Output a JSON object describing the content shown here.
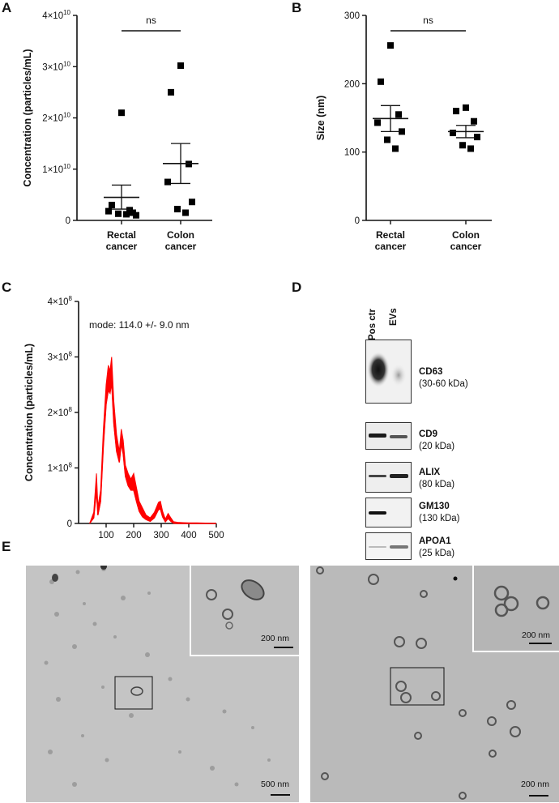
{
  "panels": {
    "A": "A",
    "B": "B",
    "C": "C",
    "D": "D",
    "E": "E"
  },
  "chart_data": [
    {
      "panel": "A",
      "type": "scatter",
      "ylabel": "Concentration (particles/mL)",
      "categories": [
        "Rectal\ncancer",
        "Colon\ncancer"
      ],
      "category_lines": [
        [
          "Rectal",
          "cancer"
        ],
        [
          "Colon",
          "cancer"
        ]
      ],
      "ylim": [
        0,
        40000000000
      ],
      "yticks": [
        {
          "value": 0,
          "label": "0"
        },
        {
          "value": 10000000000,
          "label": "1×10",
          "exp": "10"
        },
        {
          "value": 20000000000,
          "label": "2×10",
          "exp": "10"
        },
        {
          "value": 30000000000,
          "label": "3×10",
          "exp": "10"
        },
        {
          "value": 40000000000,
          "label": "4×10",
          "exp": "10"
        }
      ],
      "significance": "ns",
      "series": [
        {
          "category": "Rectal cancer",
          "points": [
            21000000000,
            3000000000,
            2000000000,
            1800000000,
            1500000000,
            1300000000,
            1200000000,
            1000000000
          ],
          "mean": 4500000000,
          "sem_upper": 6900000000,
          "sem_lower": 2200000000
        },
        {
          "category": "Colon cancer",
          "points": [
            30200000000,
            25000000000,
            11000000000,
            7500000000,
            3600000000,
            2200000000,
            1500000000
          ],
          "mean": 11100000000,
          "sem_upper": 15000000000,
          "sem_lower": 7200000000
        }
      ],
      "marker_color": "#000000"
    },
    {
      "panel": "B",
      "type": "scatter",
      "ylabel": "Size (nm)",
      "categories": [
        "Rectal\ncancer",
        "Colon\ncancer"
      ],
      "category_lines": [
        [
          "Rectal",
          "cancer"
        ],
        [
          "Colon",
          "cancer"
        ]
      ],
      "ylim": [
        0,
        300
      ],
      "yticks": [
        {
          "value": 0,
          "label": "0"
        },
        {
          "value": 100,
          "label": "100"
        },
        {
          "value": 200,
          "label": "200"
        },
        {
          "value": 300,
          "label": "300"
        }
      ],
      "significance": "ns",
      "series": [
        {
          "category": "Rectal cancer",
          "points": [
            256,
            203,
            155,
            143,
            130,
            118,
            105
          ],
          "mean": 149,
          "sem_upper": 168,
          "sem_lower": 130
        },
        {
          "category": "Colon cancer",
          "points": [
            165,
            160,
            145,
            128,
            122,
            110,
            105
          ],
          "mean": 130,
          "sem_upper": 139,
          "sem_lower": 121
        }
      ],
      "marker_color": "#000000"
    },
    {
      "panel": "C",
      "type": "area",
      "ylabel": "Concentration (particles/mL)",
      "annotation": "mode: 114.0 +/- 9.0 nm",
      "xlim": [
        0,
        500
      ],
      "ylim": [
        0,
        400000000
      ],
      "xticks": [
        100,
        200,
        300,
        400,
        500
      ],
      "yticks": [
        {
          "value": 0,
          "label": "0"
        },
        {
          "value": 100000000,
          "label": "1×10",
          "exp": "8"
        },
        {
          "value": 200000000,
          "label": "2×10",
          "exp": "8"
        },
        {
          "value": 300000000,
          "label": "3×10",
          "exp": "8"
        },
        {
          "value": 400000000,
          "label": "4×10",
          "exp": "8"
        }
      ],
      "x": [
        40,
        55,
        65,
        70,
        80,
        90,
        100,
        108,
        114,
        120,
        128,
        138,
        148,
        155,
        162,
        170,
        180,
        190,
        200,
        210,
        220,
        232,
        245,
        260,
        275,
        290,
        297,
        305,
        315,
        325,
        335,
        345,
        360,
        380,
        400,
        430,
        460,
        480,
        500
      ],
      "upper": [
        0,
        20000000,
        90000000,
        30000000,
        60000000,
        170000000,
        250000000,
        285000000,
        275000000,
        300000000,
        220000000,
        160000000,
        130000000,
        170000000,
        150000000,
        105000000,
        90000000,
        80000000,
        90000000,
        65000000,
        40000000,
        28000000,
        15000000,
        10000000,
        20000000,
        38000000,
        40000000,
        22000000,
        8000000,
        18000000,
        10000000,
        3000000,
        2000000,
        1500000,
        1000000,
        1000000,
        800000,
        500000,
        0
      ],
      "lower": [
        0,
        10000000,
        60000000,
        15000000,
        40000000,
        140000000,
        215000000,
        240000000,
        235000000,
        255000000,
        180000000,
        130000000,
        110000000,
        145000000,
        125000000,
        85000000,
        68000000,
        60000000,
        60000000,
        40000000,
        22000000,
        12000000,
        7000000,
        4000000,
        10000000,
        25000000,
        26000000,
        12000000,
        3000000,
        9000000,
        4000000,
        500000,
        0,
        0,
        0,
        0,
        0,
        0,
        0
      ],
      "fill_color": "#ff0000"
    }
  ],
  "western_blot": {
    "lanes": [
      "Pos ctr",
      "EVs"
    ],
    "bands": [
      {
        "name": "CD63",
        "size": "(30-60 kDa)"
      },
      {
        "name": "CD9",
        "size": "(20 kDa)"
      },
      {
        "name": "ALIX",
        "size": "(80 kDa)"
      },
      {
        "name": "GM130",
        "size": "(130 kDa)"
      },
      {
        "name": "APOA1",
        "size": "(25 kDa)"
      }
    ]
  },
  "tem": {
    "left": {
      "scale_main": "500 nm",
      "scale_inset": "200 nm"
    },
    "right": {
      "scale_main": "200 nm",
      "scale_inset": "200 nm"
    }
  }
}
